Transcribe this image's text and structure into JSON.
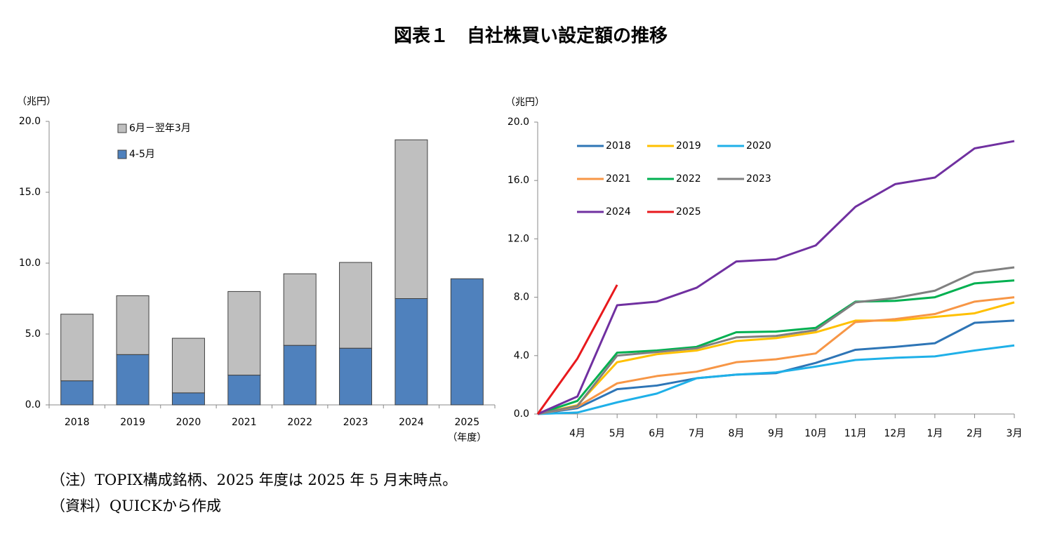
{
  "title": "図表１　自社株買い設定額の推移",
  "chart_data": [
    {
      "type": "bar",
      "stacked": true,
      "y_unit": "（兆円）",
      "x_label": "（年度）",
      "categories": [
        "2018",
        "2019",
        "2020",
        "2021",
        "2022",
        "2023",
        "2024",
        "2025"
      ],
      "series": [
        {
          "name": "4-5月",
          "color": "#4f81bd",
          "values": [
            1.7,
            3.55,
            0.85,
            2.1,
            4.2,
            4.0,
            7.5,
            8.9
          ]
        },
        {
          "name": "6月－翌年3月",
          "color": "#bfbfbf",
          "values": [
            4.7,
            4.15,
            3.85,
            5.9,
            5.05,
            6.05,
            11.2,
            null
          ]
        }
      ],
      "ylim": [
        0,
        20
      ],
      "yticks": [
        {
          "value": 0,
          "label": "0.0"
        },
        {
          "value": 5,
          "label": "5.0"
        },
        {
          "value": 10,
          "label": "10.0"
        },
        {
          "value": 15,
          "label": "15.0"
        },
        {
          "value": 20,
          "label": "20.0"
        }
      ],
      "grid": false
    },
    {
      "type": "line",
      "y_unit": "（兆円）",
      "categories": [
        null,
        "4月",
        "5月",
        "6月",
        "7月",
        "8月",
        "9月",
        "10月",
        "11月",
        "12月",
        "1月",
        "2月",
        "3月"
      ],
      "series": [
        {
          "name": "2018",
          "color": "#2e75b6",
          "values": [
            0,
            0.4,
            1.7,
            1.95,
            2.45,
            2.7,
            2.8,
            3.5,
            4.4,
            4.6,
            4.85,
            6.25,
            6.4
          ]
        },
        {
          "name": "2019",
          "color": "#ffc000",
          "values": [
            0,
            0.6,
            3.55,
            4.1,
            4.35,
            5.0,
            5.2,
            5.6,
            6.4,
            6.4,
            6.65,
            6.9,
            7.65
          ]
        },
        {
          "name": "2020",
          "color": "#1fb0e8",
          "values": [
            0,
            0.1,
            0.8,
            1.4,
            2.45,
            2.7,
            2.85,
            3.25,
            3.7,
            3.85,
            3.95,
            4.35,
            4.7
          ]
        },
        {
          "name": "2021",
          "color": "#f79646",
          "values": [
            0,
            0.5,
            2.1,
            2.6,
            2.9,
            3.55,
            3.75,
            4.15,
            6.3,
            6.5,
            6.85,
            7.7,
            8.0
          ]
        },
        {
          "name": "2022",
          "color": "#00b050",
          "values": [
            0,
            0.9,
            4.2,
            4.35,
            4.6,
            5.6,
            5.65,
            5.9,
            7.7,
            7.75,
            8.0,
            8.95,
            9.15
          ]
        },
        {
          "name": "2023",
          "color": "#808080",
          "values": [
            0,
            0.55,
            4.0,
            4.25,
            4.5,
            5.25,
            5.35,
            5.75,
            7.65,
            7.95,
            8.45,
            9.7,
            10.05
          ]
        },
        {
          "name": "2024",
          "color": "#7030a0",
          "values": [
            0,
            1.2,
            7.45,
            7.7,
            8.65,
            10.45,
            10.6,
            11.55,
            14.2,
            15.75,
            16.2,
            18.2,
            18.7
          ]
        },
        {
          "name": "2025",
          "color": "#e8191d",
          "values": [
            0,
            3.8,
            8.85,
            null,
            null,
            null,
            null,
            null,
            null,
            null,
            null,
            null,
            null
          ]
        }
      ],
      "ylim": [
        0,
        20
      ],
      "yticks": [
        {
          "value": 0,
          "label": "0.0"
        },
        {
          "value": 4,
          "label": "4.0"
        },
        {
          "value": 8,
          "label": "8.0"
        },
        {
          "value": 12,
          "label": "12.0"
        },
        {
          "value": 16,
          "label": "16.0"
        },
        {
          "value": 20,
          "label": "20.0"
        }
      ],
      "grid": false
    }
  ],
  "notes": [
    "（注）TOPIX構成銘柄、2025 年度は 2025 年 5 月末時点。",
    "（資料）QUICKから作成"
  ]
}
